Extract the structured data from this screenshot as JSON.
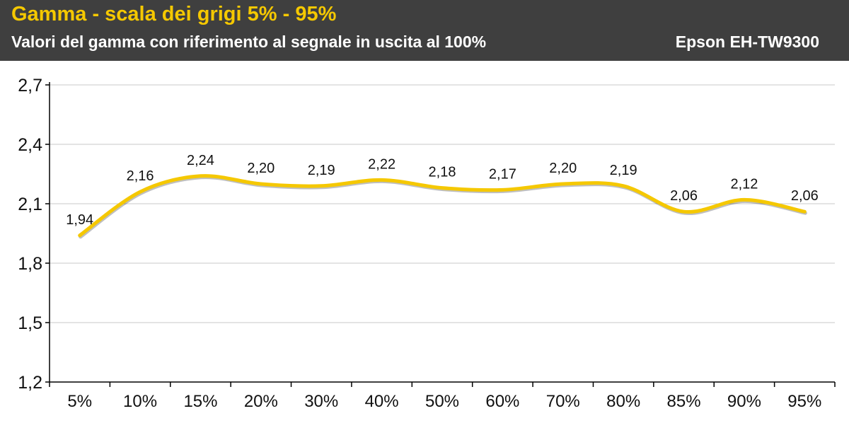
{
  "header": {
    "title": "Gamma - scala dei grigi 5% - 95%",
    "subtitle": "Valori del gamma con riferimento al segnale in uscita al 100%",
    "device": "Epson EH-TW9300"
  },
  "colors": {
    "header_bg": "#3f3f3f",
    "title": "#f5c800",
    "line": "#f5c800",
    "grid": "#c8c8c8"
  },
  "chart_data": {
    "type": "line",
    "categories": [
      "5%",
      "10%",
      "15%",
      "20%",
      "30%",
      "40%",
      "50%",
      "60%",
      "70%",
      "80%",
      "85%",
      "90%",
      "95%"
    ],
    "series": [
      {
        "values": [
          1.94,
          2.16,
          2.24,
          2.2,
          2.19,
          2.22,
          2.18,
          2.17,
          2.2,
          2.19,
          2.06,
          2.12,
          2.06
        ],
        "labels": [
          "1,94",
          "2,16",
          "2,24",
          "2,20",
          "2,19",
          "2,22",
          "2,18",
          "2,17",
          "2,20",
          "2,19",
          "2,06",
          "2,12",
          "2,06"
        ]
      }
    ],
    "yticks": [
      1.2,
      1.5,
      1.8,
      2.1,
      2.4,
      2.7
    ],
    "ytick_labels": [
      "1,2",
      "1,5",
      "1,8",
      "2,1",
      "2,4",
      "2,7"
    ],
    "ylim": [
      1.2,
      2.7
    ],
    "grid": true,
    "smooth": true
  }
}
